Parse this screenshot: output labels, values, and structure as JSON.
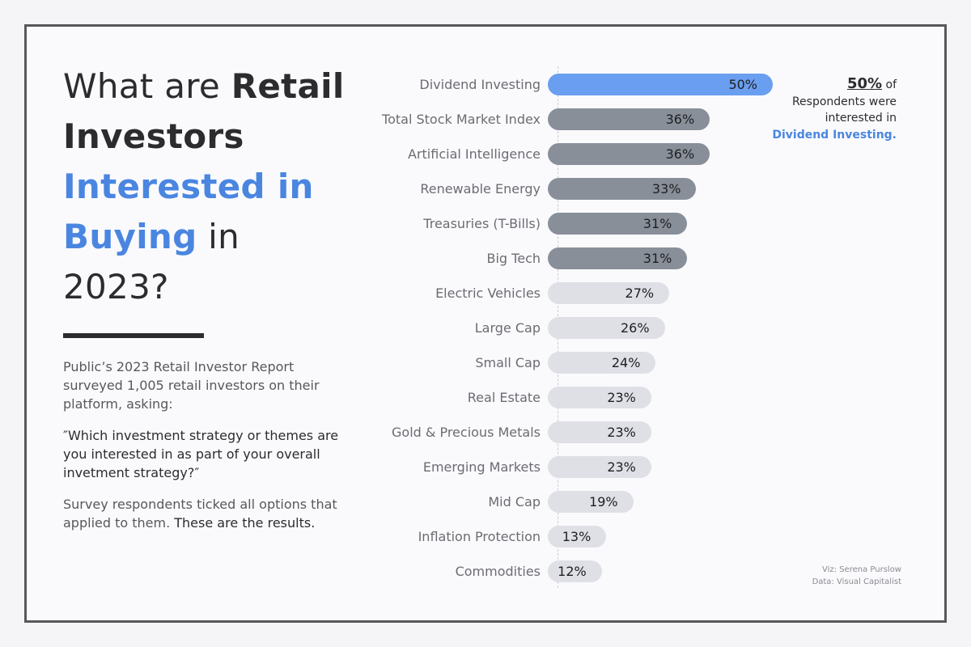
{
  "title": {
    "part1": "What are ",
    "part2": "Retail Investors",
    "part3": "Interested in Buying",
    "part4": " in 2023?"
  },
  "description": "Public’s 2023 Retail Investor Report surveyed 1,005 retail investors on their platform, asking:",
  "question": "″Which investment strategy or themes are you interested in as part of your overall invetment strategy?″",
  "closing": {
    "part1": "Survey respondents ticked all options that applied to them. ",
    "part2": "These are the results."
  },
  "annotation": {
    "pct": "50%",
    "of": " of",
    "line2": "Respondents were interested in ",
    "highlight": "Dividend Investing."
  },
  "credits": {
    "viz": "Viz: Serena Purslow",
    "data": "Data: Visual Capitalist"
  },
  "colors": {
    "highlight": "#6a9ef0",
    "top": "#888f99",
    "rest": "#dfe0e6"
  },
  "chart_data": {
    "type": "bar",
    "orientation": "horizontal",
    "title": "What are Retail Investors Interested in Buying in 2023?",
    "xlabel": "",
    "ylabel": "",
    "xlim": [
      0,
      50
    ],
    "categories": [
      "Dividend Investing",
      "Total Stock Market Index",
      "Artificial Intelligence",
      "Renewable Energy",
      "Treasuries (T-Bills)",
      "Big Tech",
      "Electric Vehicles",
      "Large Cap",
      "Small Cap",
      "Real Estate",
      "Gold & Precious Metals",
      "Emerging Markets",
      "Mid Cap",
      "Inflation Protection",
      "Commodities"
    ],
    "values": [
      50,
      36,
      36,
      33,
      31,
      31,
      27,
      26,
      24,
      23,
      23,
      23,
      19,
      13,
      12
    ],
    "value_labels": [
      "50%",
      "36%",
      "36%",
      "33%",
      "31%",
      "31%",
      "27%",
      "26%",
      "24%",
      "23%",
      "23%",
      "23%",
      "19%",
      "13%",
      "12%"
    ],
    "groups": [
      "highlight",
      "top",
      "top",
      "top",
      "top",
      "top",
      "rest",
      "rest",
      "rest",
      "rest",
      "rest",
      "rest",
      "rest",
      "rest",
      "rest"
    ]
  }
}
